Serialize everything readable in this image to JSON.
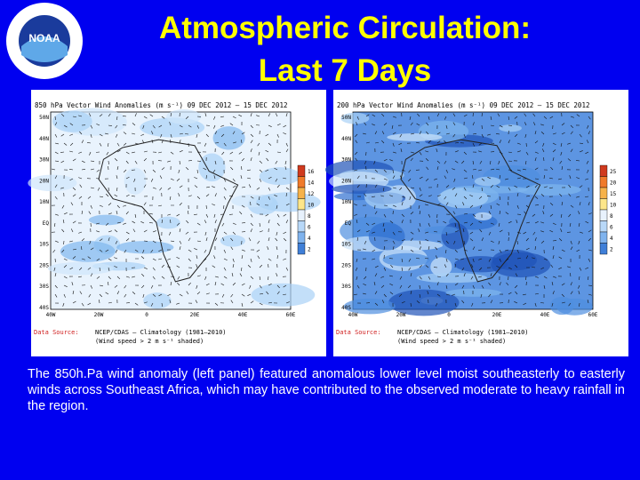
{
  "header": {
    "title_lines": [
      "Atmospheric Circulation:",
      "Last 7 Days"
    ],
    "logo": "NOAA"
  },
  "panels": [
    {
      "title": "850 hPa Vector Wind Anomalies (m s⁻¹) 09 DEC 2012 – 15 DEC 2012",
      "lat_labels": [
        "50N",
        "40N",
        "30N",
        "20N",
        "10N",
        "EQ",
        "10S",
        "20S",
        "30S",
        "40S"
      ],
      "lon_labels": [
        "40W",
        "20W",
        "0",
        "20E",
        "40E",
        "60E"
      ],
      "colorbar": [
        "16",
        "14",
        "12",
        "10",
        "8",
        "6",
        "4",
        "2"
      ],
      "source_label": "Data Source:",
      "source": "NCEP/CDAS – Climatology (1981–2010)",
      "note": "(Wind speed > 2 m s⁻¹ shaded)"
    },
    {
      "title": "200 hPa Vector Wind Anomalies (m s⁻¹) 09 DEC 2012 – 15 DEC 2012",
      "lat_labels": [
        "50N",
        "40N",
        "30N",
        "20N",
        "10N",
        "EQ",
        "10S",
        "20S",
        "30S",
        "40S"
      ],
      "lon_labels": [
        "40W",
        "20W",
        "0",
        "20E",
        "40E",
        "60E"
      ],
      "colorbar": [
        "25",
        "20",
        "15",
        "10",
        "8",
        "6",
        "4",
        "2"
      ],
      "source_label": "Data Source:",
      "source": "NCEP/CDAS – Climatology (1981–2010)",
      "note": "(Wind speed > 2 m s⁻¹ shaded)"
    }
  ],
  "body": "The 850h.Pa wind anomaly (left panel) featured anomalous lower level moist southeasterly to easterly winds across Southeast Africa, which may have contributed to the observed moderate to heavy rainfall in the region."
}
